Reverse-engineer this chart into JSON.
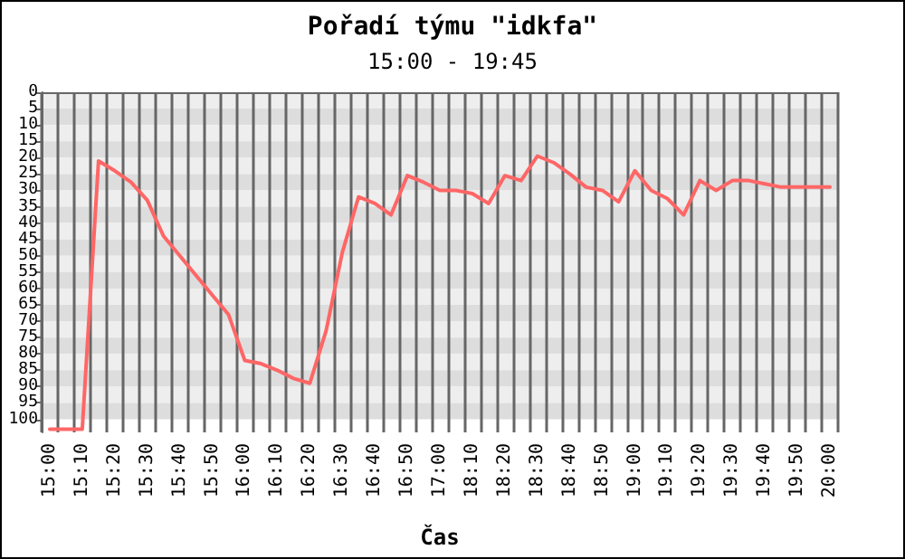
{
  "chart_data": {
    "type": "line",
    "title": "Pořadí týmu \"idkfa\"",
    "subtitle": "15:00 - 19:45",
    "xlabel": "Čas",
    "categories": [
      "15:00",
      null,
      "15:10",
      null,
      "15:20",
      null,
      "15:30",
      null,
      "15:40",
      null,
      "15:50",
      null,
      "16:00",
      null,
      "16:10",
      null,
      "16:20",
      null,
      "16:30",
      null,
      "16:40",
      null,
      "16:50",
      null,
      "17:00",
      null,
      "18:10",
      null,
      "18:20",
      null,
      "18:30",
      null,
      "18:40",
      null,
      "18:50",
      null,
      "19:00",
      null,
      "19:10",
      null,
      "19:20",
      null,
      "19:30",
      null,
      "19:40",
      null,
      "19:50",
      null,
      "20:00"
    ],
    "series": [
      {
        "color": "#ff6666",
        "values": [
          103,
          103,
          103,
          21,
          24,
          27.5,
          33,
          44,
          50,
          56,
          62,
          68,
          82,
          83,
          85,
          87.5,
          89,
          73,
          49,
          32,
          34,
          37.5,
          25.5,
          27.5,
          30,
          30,
          31,
          34,
          25.5,
          27,
          19.5,
          21.5,
          25,
          29,
          30,
          33.5,
          24,
          30,
          32.5,
          37.5,
          27,
          30,
          27,
          27,
          28,
          29,
          29,
          29,
          29
        ]
      }
    ],
    "ylim": [
      104,
      0
    ],
    "yticks": [
      0,
      5,
      10,
      15,
      20,
      25,
      30,
      35,
      40,
      45,
      50,
      55,
      60,
      65,
      70,
      75,
      80,
      85,
      90,
      95,
      100
    ],
    "grid": true,
    "marker": "none",
    "line_style": "solid"
  }
}
